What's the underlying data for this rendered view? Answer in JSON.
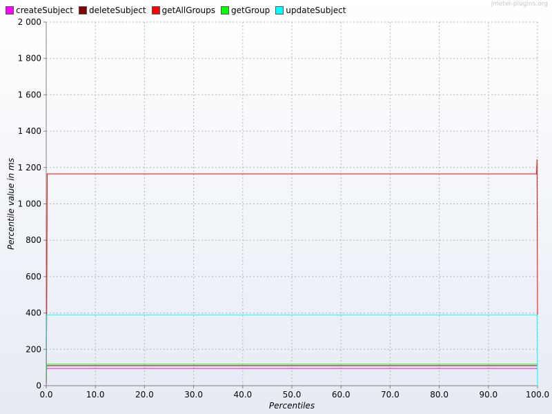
{
  "watermark": "jmeter-plugins.org",
  "chart_data": {
    "type": "line",
    "title": "",
    "xlabel": "Percentiles",
    "ylabel": "Percentile value in ms",
    "xlim": [
      0,
      100
    ],
    "ylim": [
      0,
      2000
    ],
    "x_ticks": [
      {
        "value": 0,
        "label": "0.0"
      },
      {
        "value": 10,
        "label": "10.0"
      },
      {
        "value": 20,
        "label": "20.0"
      },
      {
        "value": 30,
        "label": "30.0"
      },
      {
        "value": 40,
        "label": "40.0"
      },
      {
        "value": 50,
        "label": "50.0"
      },
      {
        "value": 60,
        "label": "60.0"
      },
      {
        "value": 70,
        "label": "70.0"
      },
      {
        "value": 80,
        "label": "80.0"
      },
      {
        "value": 90,
        "label": "90.0"
      },
      {
        "value": 100,
        "label": "100.0"
      }
    ],
    "y_ticks": [
      {
        "value": 0,
        "label": "0"
      },
      {
        "value": 200,
        "label": "200"
      },
      {
        "value": 400,
        "label": "400"
      },
      {
        "value": 600,
        "label": "600"
      },
      {
        "value": 800,
        "label": "800"
      },
      {
        "value": 1000,
        "label": "1 000"
      },
      {
        "value": 1200,
        "label": "1 200"
      },
      {
        "value": 1400,
        "label": "1 400"
      },
      {
        "value": 1600,
        "label": "1 600"
      },
      {
        "value": 1800,
        "label": "1 800"
      },
      {
        "value": 2000,
        "label": "2 000"
      }
    ],
    "grid": true,
    "legend_position": "top-left",
    "series": [
      {
        "name": "createSubject",
        "color": "#ff00ff",
        "points": [
          [
            0.0,
            0
          ],
          [
            0.1,
            95
          ],
          [
            99.9,
            95
          ],
          [
            100.0,
            95
          ]
        ]
      },
      {
        "name": "deleteSubject",
        "color": "#800000",
        "points": [
          [
            0.0,
            0
          ],
          [
            0.1,
            110
          ],
          [
            99.9,
            110
          ],
          [
            100.0,
            110
          ]
        ]
      },
      {
        "name": "getAllGroups",
        "color": "#ff0000",
        "points": [
          [
            0.0,
            0
          ],
          [
            0.1,
            390
          ],
          [
            0.2,
            1165
          ],
          [
            99.8,
            1165
          ],
          [
            99.9,
            1245
          ],
          [
            100.0,
            390
          ]
        ]
      },
      {
        "name": "getGroup",
        "color": "#00ff00",
        "points": [
          [
            0.0,
            0
          ],
          [
            0.1,
            118
          ],
          [
            99.9,
            118
          ],
          [
            100.0,
            118
          ]
        ]
      },
      {
        "name": "updateSubject",
        "color": "#00ffff",
        "points": [
          [
            0.0,
            0
          ],
          [
            0.1,
            390
          ],
          [
            99.9,
            390
          ],
          [
            100.0,
            0
          ]
        ]
      }
    ]
  }
}
